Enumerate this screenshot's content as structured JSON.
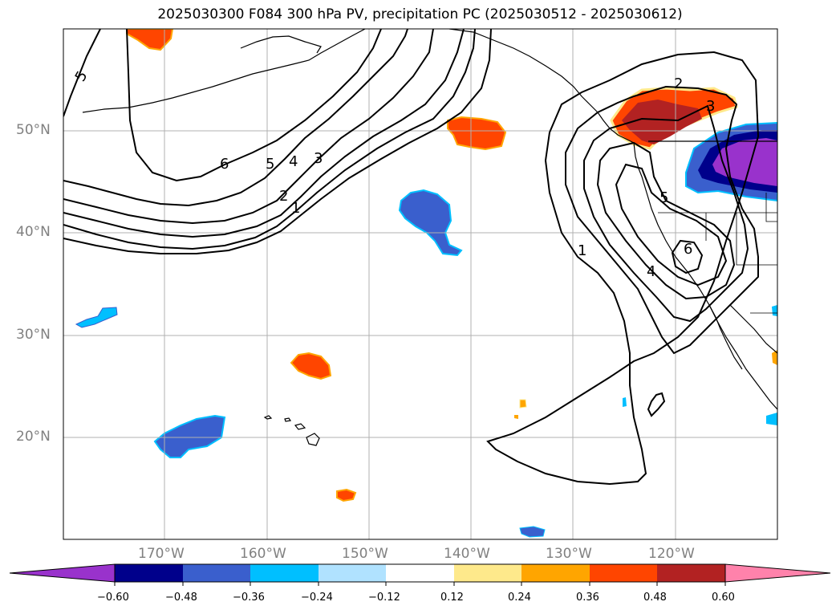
{
  "title": "2025030300 F084 300 hPa PV, precipitation PC (2025030512 - 2025030612)",
  "map": {
    "lat_labels": [
      "50°N",
      "40°N",
      "30°N",
      "20°N"
    ],
    "lon_labels": [
      "170°W",
      "160°W",
      "150°W",
      "140°W",
      "130°W",
      "120°W"
    ],
    "gridlines": "on",
    "contour_labels": [
      "5",
      "6",
      "5",
      "4",
      "3",
      "2",
      "1",
      "2",
      "3",
      "5",
      "6",
      "4",
      "1"
    ]
  },
  "colorbar": {
    "ticks": [
      "−0.60",
      "−0.48",
      "−0.36",
      "−0.24",
      "−0.12",
      "0.12",
      "0.24",
      "0.36",
      "0.48",
      "0.60"
    ],
    "colors": [
      "#9932cc",
      "#00008b",
      "#3a5fcd",
      "#00bfff",
      "#b0e2ff",
      "#ffffff",
      "#fee98b",
      "#ffa500",
      "#ff4500",
      "#b22222",
      "#ff82ab"
    ]
  }
}
